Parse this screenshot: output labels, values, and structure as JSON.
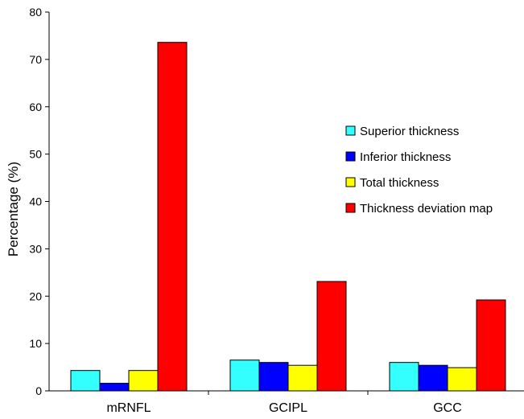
{
  "chart_data": {
    "type": "bar",
    "title": "",
    "xlabel": "",
    "ylabel": "Percentage (%)",
    "ylim": [
      0,
      80
    ],
    "yticks": [
      0,
      10,
      20,
      30,
      40,
      50,
      60,
      70,
      80
    ],
    "grid": false,
    "legend_position": "right",
    "categories": [
      "mRNFL",
      "GCIPL",
      "GCC"
    ],
    "series": [
      {
        "name": "Superior thickness",
        "color": "#33FFFF",
        "values": [
          4.3,
          6.5,
          6.0
        ]
      },
      {
        "name": "Inferior thickness",
        "color": "#0000FF",
        "values": [
          1.6,
          6.0,
          5.4
        ]
      },
      {
        "name": "Total thickness",
        "color": "#FFFF00",
        "values": [
          4.3,
          5.4,
          4.9
        ]
      },
      {
        "name": "Thickness deviation map",
        "color": "#FF0000",
        "values": [
          73.6,
          23.1,
          19.2
        ]
      }
    ]
  }
}
